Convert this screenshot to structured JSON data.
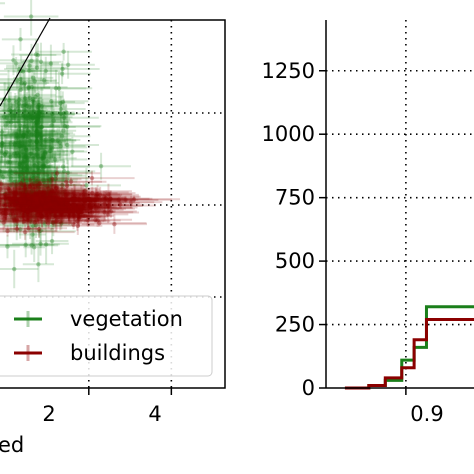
{
  "chart_data": [
    {
      "type": "scatter",
      "title": "",
      "xlabel": "...ed",
      "ylabel": "",
      "xlim": [
        -0.2,
        5.3
      ],
      "x_ticks": [
        2,
        4
      ],
      "grid": true,
      "grid_style": "dotted",
      "legend_position": "bottom",
      "series": [
        {
          "name": "vegetation",
          "color": "#1a7f1a",
          "center_x": 0.6,
          "spread_x": 1.0,
          "spread_y": 1.0,
          "count": 420
        },
        {
          "name": "buildings",
          "color": "#8b0000",
          "center_x": 1.0,
          "spread_x": 1.3,
          "spread_y": 0.25,
          "count": 420
        }
      ],
      "reference_line": true
    },
    {
      "type": "line",
      "step": true,
      "title": "",
      "xlabel": "",
      "ylabel": "",
      "x_ticks": [
        0.9
      ],
      "y_ticks": [
        0,
        250,
        500,
        750,
        1000,
        1250
      ],
      "ylim": [
        0,
        1450
      ],
      "grid": true,
      "grid_style": "dotted",
      "series": [
        {
          "name": "vegetation",
          "color": "#1a7f1a",
          "x": [
            0.826,
            0.855,
            0.875,
            0.895,
            0.91,
            0.925,
            0.945
          ],
          "y": [
            0,
            10,
            30,
            110,
            160,
            320,
            320
          ]
        },
        {
          "name": "buildings",
          "color": "#8b0000",
          "x": [
            0.826,
            0.855,
            0.875,
            0.895,
            0.91,
            0.925,
            0.945
          ],
          "y": [
            0,
            10,
            40,
            80,
            190,
            270,
            270
          ]
        }
      ]
    }
  ],
  "legend": {
    "vegetation": "vegetation",
    "buildings": "buildings"
  },
  "left_xlabel": "ed",
  "left_xticks": [
    "2",
    "4"
  ],
  "right_yticks": [
    "0",
    "250",
    "500",
    "750",
    "1000",
    "1250"
  ],
  "right_xticks": [
    "0.9"
  ]
}
